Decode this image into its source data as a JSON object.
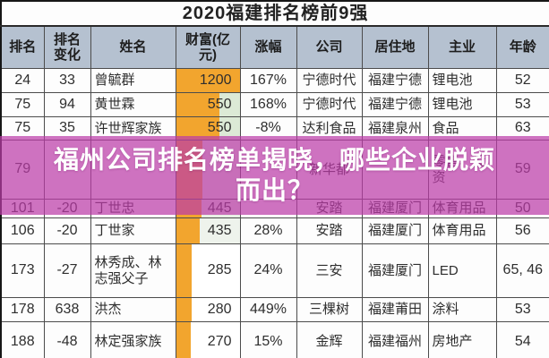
{
  "title": "2020福建排名榜前9强",
  "overlay": {
    "line1": "福州公司排名榜单揭晓，哪些企业脱颖",
    "line2": "而出？",
    "bg": "rgba(187,60,168,0.72)",
    "text_color": "#ffffff"
  },
  "styles": {
    "header_bg": "#b5c1d0",
    "bar_color": "#f2a52e",
    "grid_color": "#4c4c4c"
  },
  "chart_data": {
    "type": "table",
    "title": "2020福建排名榜前9强",
    "columns": [
      "排名",
      "排名变化",
      "姓名",
      "财富(亿元)",
      "涨幅",
      "公司",
      "居住地",
      "主业",
      "年龄"
    ],
    "rows": [
      {
        "rank": "24",
        "change": "33",
        "name": "曾毓群",
        "wealth": "1200",
        "pct": "167%",
        "company": "宁德时代",
        "residence": "福建宁德",
        "business": "锂电池",
        "age": "52",
        "bar_pct": 100,
        "cell_bg": "#f2a52e"
      },
      {
        "rank": "75",
        "change": "94",
        "name": "黄世霖",
        "wealth": "550",
        "pct": "168%",
        "company": "宁德时代",
        "residence": "福建宁德",
        "business": "锂电池",
        "age": "53",
        "bar_pct": 68,
        "cell_bg": "#dcead6"
      },
      {
        "rank": "75",
        "change": "35",
        "name": "许世辉家族",
        "wealth": "550",
        "pct": "-8%",
        "company": "达利食品",
        "residence": "福建泉州",
        "business": "食品",
        "age": "63",
        "bar_pct": 68,
        "cell_bg": "#dcead6"
      },
      {
        "rank": "79",
        "change": "",
        "name": "",
        "wealth": "",
        "pct": "",
        "company": "新华都",
        "residence": "",
        "business": "零售、投资",
        "age": "59",
        "bar_pct": 42,
        "cell_bg": "#e8f0e5"
      },
      {
        "rank": "101",
        "change": "-20",
        "name": "丁世忠",
        "wealth": "445",
        "pct": "",
        "company": "安踏",
        "residence": "福建厦门",
        "business": "体育用品",
        "age": "50",
        "bar_pct": 40,
        "cell_bg": "#e8f0e5"
      },
      {
        "rank": "106",
        "change": "-20",
        "name": "丁世家",
        "wealth": "435",
        "pct": "28%",
        "company": "安踏",
        "residence": "福建厦门",
        "business": "体育用品",
        "age": "56",
        "bar_pct": 38,
        "cell_bg": "#eef3ec"
      },
      {
        "rank": "173",
        "change": "-27",
        "name": "林秀成、林志强父子",
        "wealth": "285",
        "pct": "24%",
        "company": "三安",
        "residence": "福建厦门",
        "business": "LED",
        "age": "65, 46",
        "bar_pct": 25,
        "cell_bg": "#ffffff"
      },
      {
        "rank": "178",
        "change": "638",
        "name": "洪杰",
        "wealth": "280",
        "pct": "449%",
        "company": "三棵树",
        "residence": "福建莆田",
        "business": "涂料",
        "age": "53",
        "bar_pct": 24,
        "cell_bg": "#ffffff"
      },
      {
        "rank": "188",
        "change": "-48",
        "name": "林定强家族",
        "wealth": "270",
        "pct": "15%",
        "company": "金辉",
        "residence": "福建福州",
        "business": "房地产",
        "age": "54",
        "bar_pct": 23,
        "cell_bg": "#ffffff"
      }
    ]
  }
}
